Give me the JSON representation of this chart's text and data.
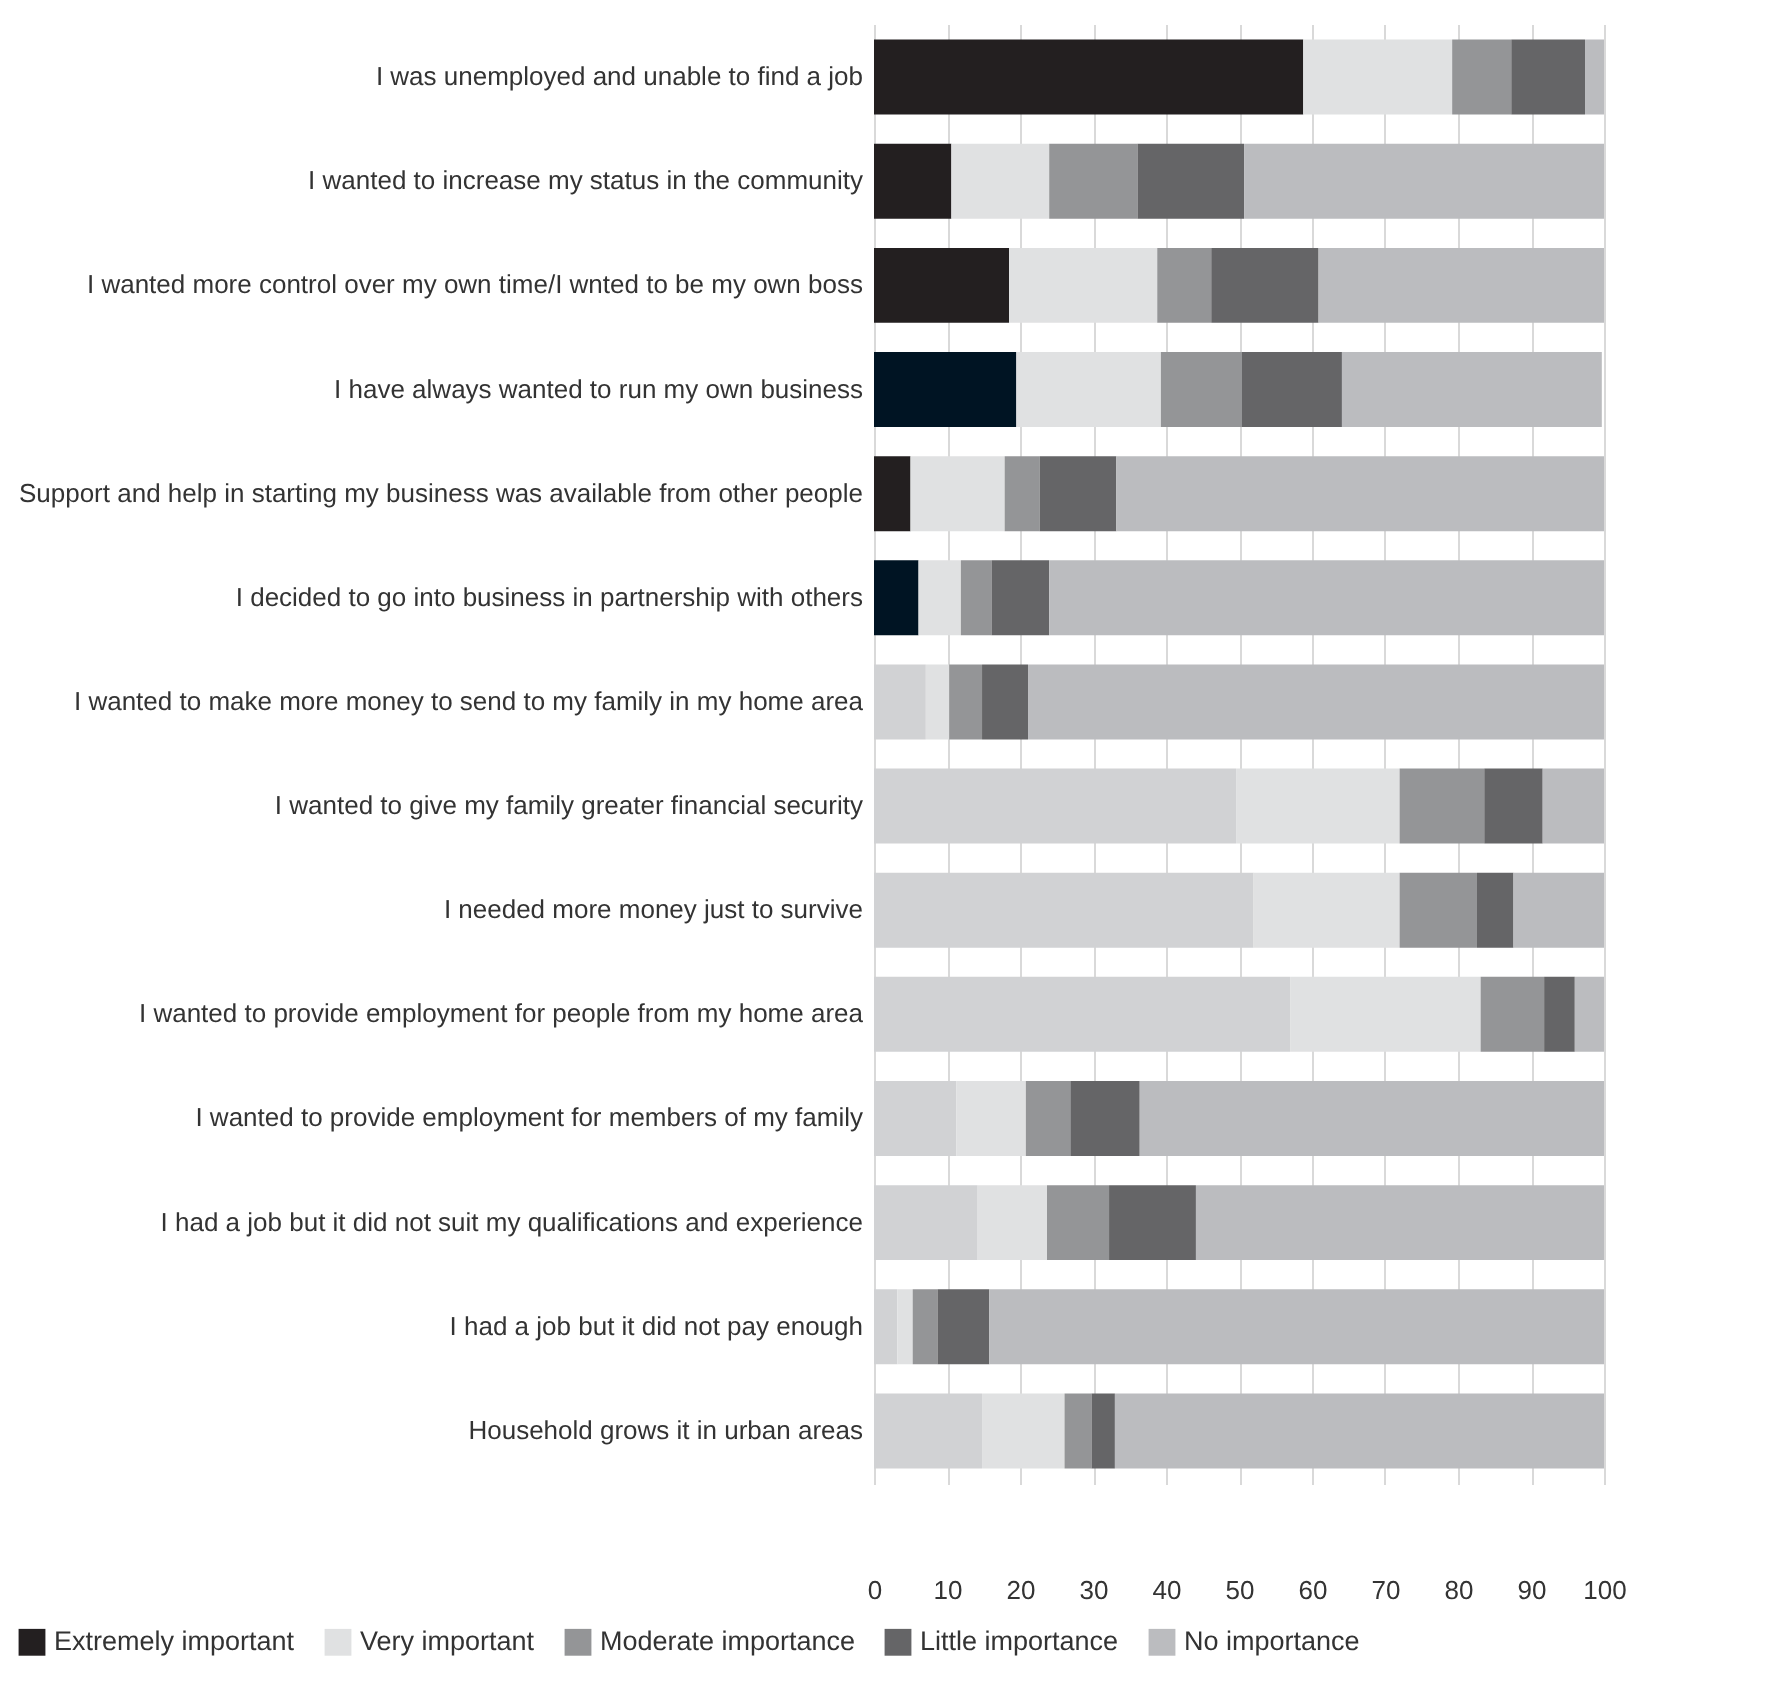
{
  "chart_data": {
    "type": "bar",
    "orientation": "horizontal",
    "stacked": true,
    "categories": [
      "I was unemployed and unable to find a job",
      "I wanted to increase my status in the community",
      "I wanted more control over my own time/I wnted to be my own boss",
      "I have always wanted to run my own business",
      "Support and help in starting my business was available from other people",
      "I decided to go into business in partnership with others",
      "I wanted to make more money to send to my family in my home area",
      "I wanted to give my family greater financial security",
      "I needed more money just to survive",
      "I wanted to provide employment for people from my home area",
      "I wanted to provide employment for members of my family",
      "I had a job but it did not suit my qualifications and experience",
      "I had a job but it did not pay enough",
      "Household grows it in urban areas"
    ],
    "series": [
      {
        "name": "Extremely important",
        "color": "#231f20",
        "colors": [
          "#231f20",
          "#231f20",
          "#231f20",
          "#001423",
          "#231f20",
          "#001423",
          "#d1d2d4",
          "#d1d2d4",
          "#d1d2d4",
          "#d1d2d4",
          "#d1d2d4",
          "#d1d2d4",
          "#d1d2d4",
          "#d1d2d4"
        ],
        "values": [
          58.8,
          10.6,
          18.5,
          19.5,
          5.0,
          6.1,
          7.1,
          49.6,
          52.0,
          57.0,
          11.3,
          14.2,
          3.2,
          14.8
        ]
      },
      {
        "name": "Very important",
        "color": "#e0e1e2",
        "values": [
          20.4,
          13.4,
          20.3,
          19.8,
          12.9,
          5.8,
          3.2,
          22.4,
          20.0,
          26.1,
          9.5,
          9.5,
          2.1,
          11.3
        ]
      },
      {
        "name": "Moderate importance",
        "color": "#949597",
        "values": [
          8.1,
          12.1,
          7.4,
          11.1,
          4.8,
          4.2,
          4.5,
          11.6,
          10.6,
          8.7,
          6.1,
          8.5,
          3.4,
          3.7
        ]
      },
      {
        "name": "Little importance",
        "color": "#656567",
        "values": [
          10.1,
          14.6,
          14.7,
          13.7,
          10.5,
          7.9,
          6.3,
          8.0,
          5.0,
          4.2,
          9.5,
          11.9,
          7.1,
          3.2
        ]
      },
      {
        "name": "No importance",
        "color": "#bbbcbf",
        "values": [
          2.6,
          49.3,
          39.1,
          35.6,
          66.8,
          76.0,
          78.9,
          8.4,
          12.4,
          4.0,
          63.6,
          55.9,
          84.2,
          67.0
        ]
      }
    ],
    "xlim": [
      0,
      100
    ],
    "xticks": [
      0,
      10,
      20,
      30,
      40,
      50,
      60,
      70,
      80,
      90,
      100
    ],
    "grid": "x",
    "legend": "bottom"
  }
}
